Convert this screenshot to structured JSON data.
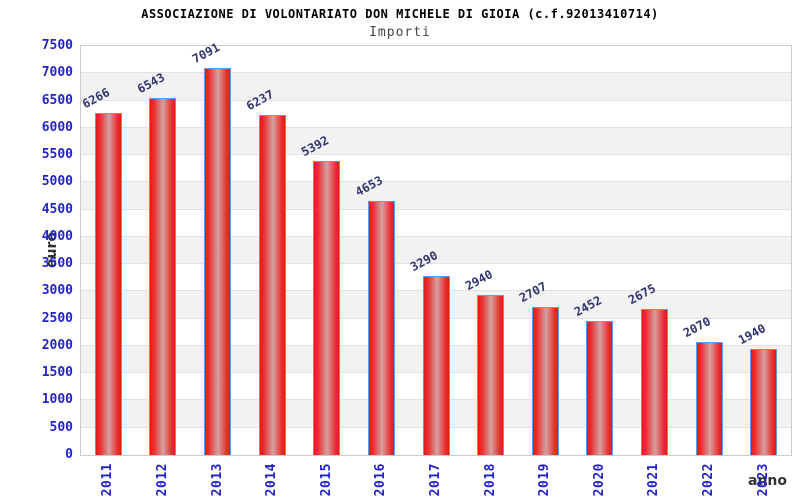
{
  "header": {
    "title": "ASSOCIAZIONE DI VOLONTARIATO DON MICHELE DI GIOIA (c.f.92013410714)",
    "subtitle": "Importi"
  },
  "chart_data": {
    "type": "bar",
    "title": "ASSOCIAZIONE DI VOLONTARIATO DON MICHELE DI GIOIA (c.f.92013410714)",
    "subtitle": "Importi",
    "categories": [
      "2011",
      "2012",
      "2013",
      "2014",
      "2015",
      "2016",
      "2017",
      "2018",
      "2019",
      "2020",
      "2021",
      "2022",
      "2023"
    ],
    "values": [
      6266,
      6543,
      7091,
      6237,
      5392,
      4653,
      3290,
      2940,
      2707,
      2452,
      2675,
      2070,
      1940
    ],
    "xlabel": "anno",
    "ylabel": "euro",
    "ylim": [
      0,
      7500
    ],
    "ytick_step": 500,
    "ytick_labels": [
      "0",
      "500",
      "1000",
      "1500",
      "2000",
      "2500",
      "3000",
      "3500",
      "4000",
      "4500",
      "5000",
      "5500",
      "6000",
      "6500",
      "7000",
      "7500"
    ],
    "grid": true,
    "legend_position": "none",
    "bar_value_labels_shown": true
  },
  "colors": {
    "bar_edge_red": "#e41a1a",
    "bar_mid_red": "#ea2f2f",
    "bar_center_light": "#d5a0a0",
    "bar_border_blue": "#5b9ded",
    "tick_label_blue": "#2222cc",
    "value_label_navy": "#333370",
    "axis_label_gray": "#333333",
    "band_gray": "#f2f2f2",
    "band_white": "#ffffff",
    "gridline_gray": "#e2e2e2",
    "plot_border_gray": "#cccccc",
    "title_black": "#000000",
    "subtitle_gray": "#464646"
  }
}
